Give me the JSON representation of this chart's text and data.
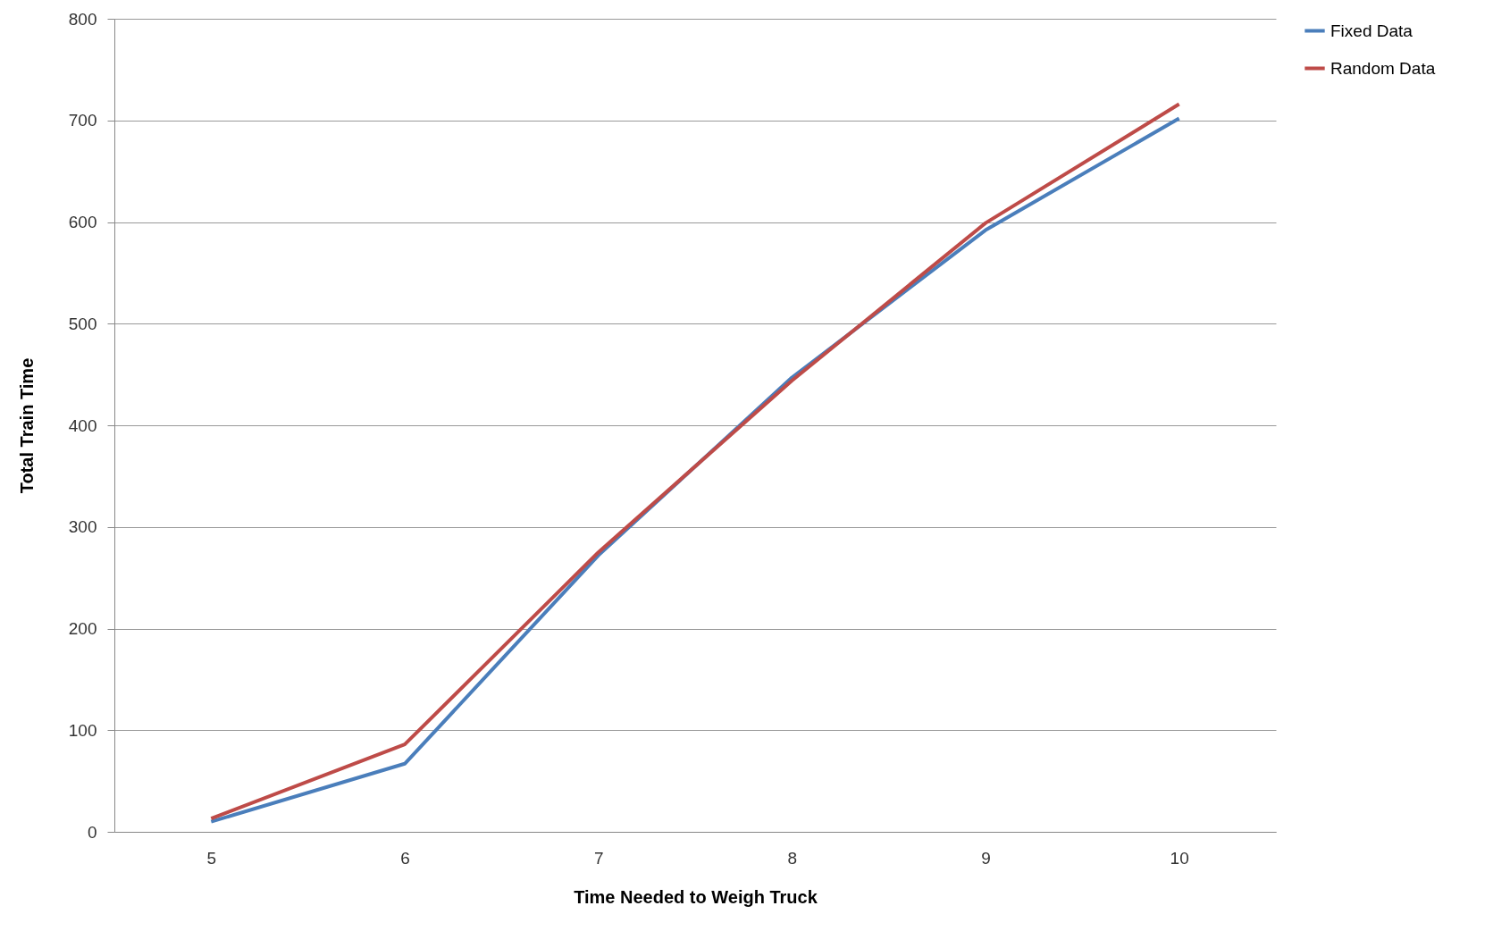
{
  "chart_data": {
    "type": "line",
    "xlabel": "Time Needed to Weigh Truck",
    "ylabel": "Total Train Time",
    "categories": [
      "5",
      "6",
      "7",
      "8",
      "9",
      "10"
    ],
    "series": [
      {
        "name": "Fixed Data",
        "color": "#4a7ebb",
        "values": [
          10,
          67,
          272,
          447,
          592,
          702
        ]
      },
      {
        "name": "Random Data",
        "color": "#be4b48",
        "values": [
          13,
          86,
          275,
          444,
          599,
          716
        ]
      }
    ],
    "ylim": [
      0,
      800
    ],
    "yticks": [
      0,
      100,
      200,
      300,
      400,
      500,
      600,
      700,
      800
    ],
    "grid": "y",
    "legend": "right",
    "marker": "none",
    "line_style": "solid"
  }
}
